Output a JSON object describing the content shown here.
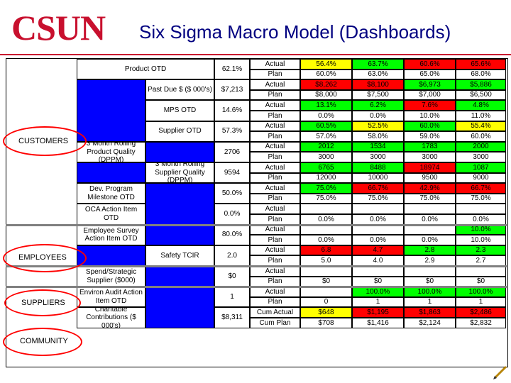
{
  "header": {
    "logo": "CSUN",
    "title": "Six Sigma Macro Model (Dashboards)"
  },
  "colors": {
    "brand_red": "#c8102e",
    "metric_blue": "#0000ff",
    "status_green": "#00ff00",
    "status_yellow": "#ffff00",
    "status_red": "#ff0000",
    "title_navy": "#000080"
  },
  "categories": [
    "CUSTOMERS",
    "EMPLOYEES",
    "SUPPLIERS",
    "COMMUNITY"
  ],
  "metrics": [
    "Product OTD",
    "Past Due $ ($ 000's)",
    "MPS OTD",
    "Supplier OTD",
    "3 Month Rolling Product Quality (DPPM)",
    "3 Month Rolling Supplier Quality (DPPM)",
    "Dev. Program Milestone OTD",
    "OCA Action Item OTD",
    "Employee Survey Action Item OTD",
    "Safety TCIR",
    "Spend/Strategic Supplier ($000)",
    "Environ Audit Action Item OTD",
    "Charitable Contributions ($ 000's)"
  ],
  "metric_values": [
    "62.1%",
    "$7,213",
    "14.6%",
    "57.3%",
    "2706",
    "9594",
    "50.0%",
    "0.0%",
    "80.0%",
    "2.0",
    "$0",
    "1",
    "$8,311"
  ],
  "row_labels": [
    "Actual",
    "Plan",
    "Actual",
    "Plan",
    "Actual",
    "Plan",
    "Actual",
    "Plan",
    "Actual",
    "Plan",
    "Actual",
    "Plan",
    "Actual",
    "Plan",
    "Actual",
    "Plan",
    "Actual",
    "Plan",
    "Actual",
    "Plan",
    "Actual",
    "Plan",
    "Actual",
    "Plan",
    "Cum Actual",
    "Cum Plan"
  ],
  "grid": [
    [
      "56.4%",
      "63.7%",
      "60.6%",
      "65.6%"
    ],
    [
      "60.0%",
      "63.0%",
      "65.0%",
      "68.0%"
    ],
    [
      "$8,262",
      "$8,100",
      "$6,973",
      "$5,886"
    ],
    [
      "$8,000",
      "$7,500",
      "$7,000",
      "$6,500"
    ],
    [
      "13.1%",
      "6.2%",
      "7.6%",
      "4.8%"
    ],
    [
      "0.0%",
      "0.0%",
      "10.0%",
      "11.0%"
    ],
    [
      "60.5%",
      "52.5%",
      "60.0%",
      "55.4%"
    ],
    [
      "57.0%",
      "58.0%",
      "59.0%",
      "60.0%"
    ],
    [
      "2012",
      "1534",
      "1783",
      "2000"
    ],
    [
      "3000",
      "3000",
      "3000",
      "3000"
    ],
    [
      "6765",
      "8488",
      "18974",
      "1087"
    ],
    [
      "12000",
      "10000",
      "9500",
      "9000"
    ],
    [
      "75.0%",
      "66.7%",
      "42.9%",
      "66.7%"
    ],
    [
      "75.0%",
      "75.0%",
      "75.0%",
      "75.0%"
    ],
    [
      "",
      "",
      "",
      ""
    ],
    [
      "0.0%",
      "0.0%",
      "0.0%",
      "0.0%"
    ],
    [
      "",
      "",
      "",
      "10.0%"
    ],
    [
      "0.0%",
      "0.0%",
      "0.0%",
      "10.0%"
    ],
    [
      "6.8",
      "4.7",
      "2.8",
      "2.3"
    ],
    [
      "5.0",
      "4.0",
      "2.9",
      "2.7"
    ],
    [
      "",
      "",
      "",
      ""
    ],
    [
      "$0",
      "$0",
      "$0",
      "$0"
    ],
    [
      "",
      "100.0%",
      "100.0%",
      "100.0%"
    ],
    [
      "0",
      "1",
      "1",
      "1"
    ],
    [
      "$648",
      "$1,195",
      "$1,863",
      "$2,486"
    ],
    [
      "$708",
      "$1,416",
      "$2,124",
      "$2,832"
    ]
  ],
  "grid_status": [
    [
      "y",
      "g",
      "r",
      "r"
    ],
    [
      "w",
      "w",
      "w",
      "w"
    ],
    [
      "r",
      "r",
      "g",
      "g"
    ],
    [
      "w",
      "w",
      "w",
      "w"
    ],
    [
      "g",
      "g",
      "r",
      "g"
    ],
    [
      "w",
      "w",
      "w",
      "w"
    ],
    [
      "g",
      "y",
      "g",
      "y"
    ],
    [
      "w",
      "w",
      "w",
      "w"
    ],
    [
      "g",
      "g",
      "g",
      "g"
    ],
    [
      "w",
      "w",
      "w",
      "w"
    ],
    [
      "g",
      "g",
      "r",
      "g"
    ],
    [
      "w",
      "w",
      "w",
      "w"
    ],
    [
      "g",
      "r",
      "r",
      "r"
    ],
    [
      "w",
      "w",
      "w",
      "w"
    ],
    [
      "w",
      "w",
      "w",
      "w"
    ],
    [
      "w",
      "w",
      "w",
      "w"
    ],
    [
      "w",
      "w",
      "w",
      "g"
    ],
    [
      "w",
      "w",
      "w",
      "w"
    ],
    [
      "r",
      "r",
      "g",
      "g"
    ],
    [
      "w",
      "w",
      "w",
      "w"
    ],
    [
      "w",
      "w",
      "w",
      "w"
    ],
    [
      "w",
      "w",
      "w",
      "w"
    ],
    [
      "w",
      "g",
      "g",
      "g"
    ],
    [
      "w",
      "w",
      "w",
      "w"
    ],
    [
      "y",
      "r",
      "r",
      "r"
    ],
    [
      "w",
      "w",
      "w",
      "w"
    ]
  ]
}
